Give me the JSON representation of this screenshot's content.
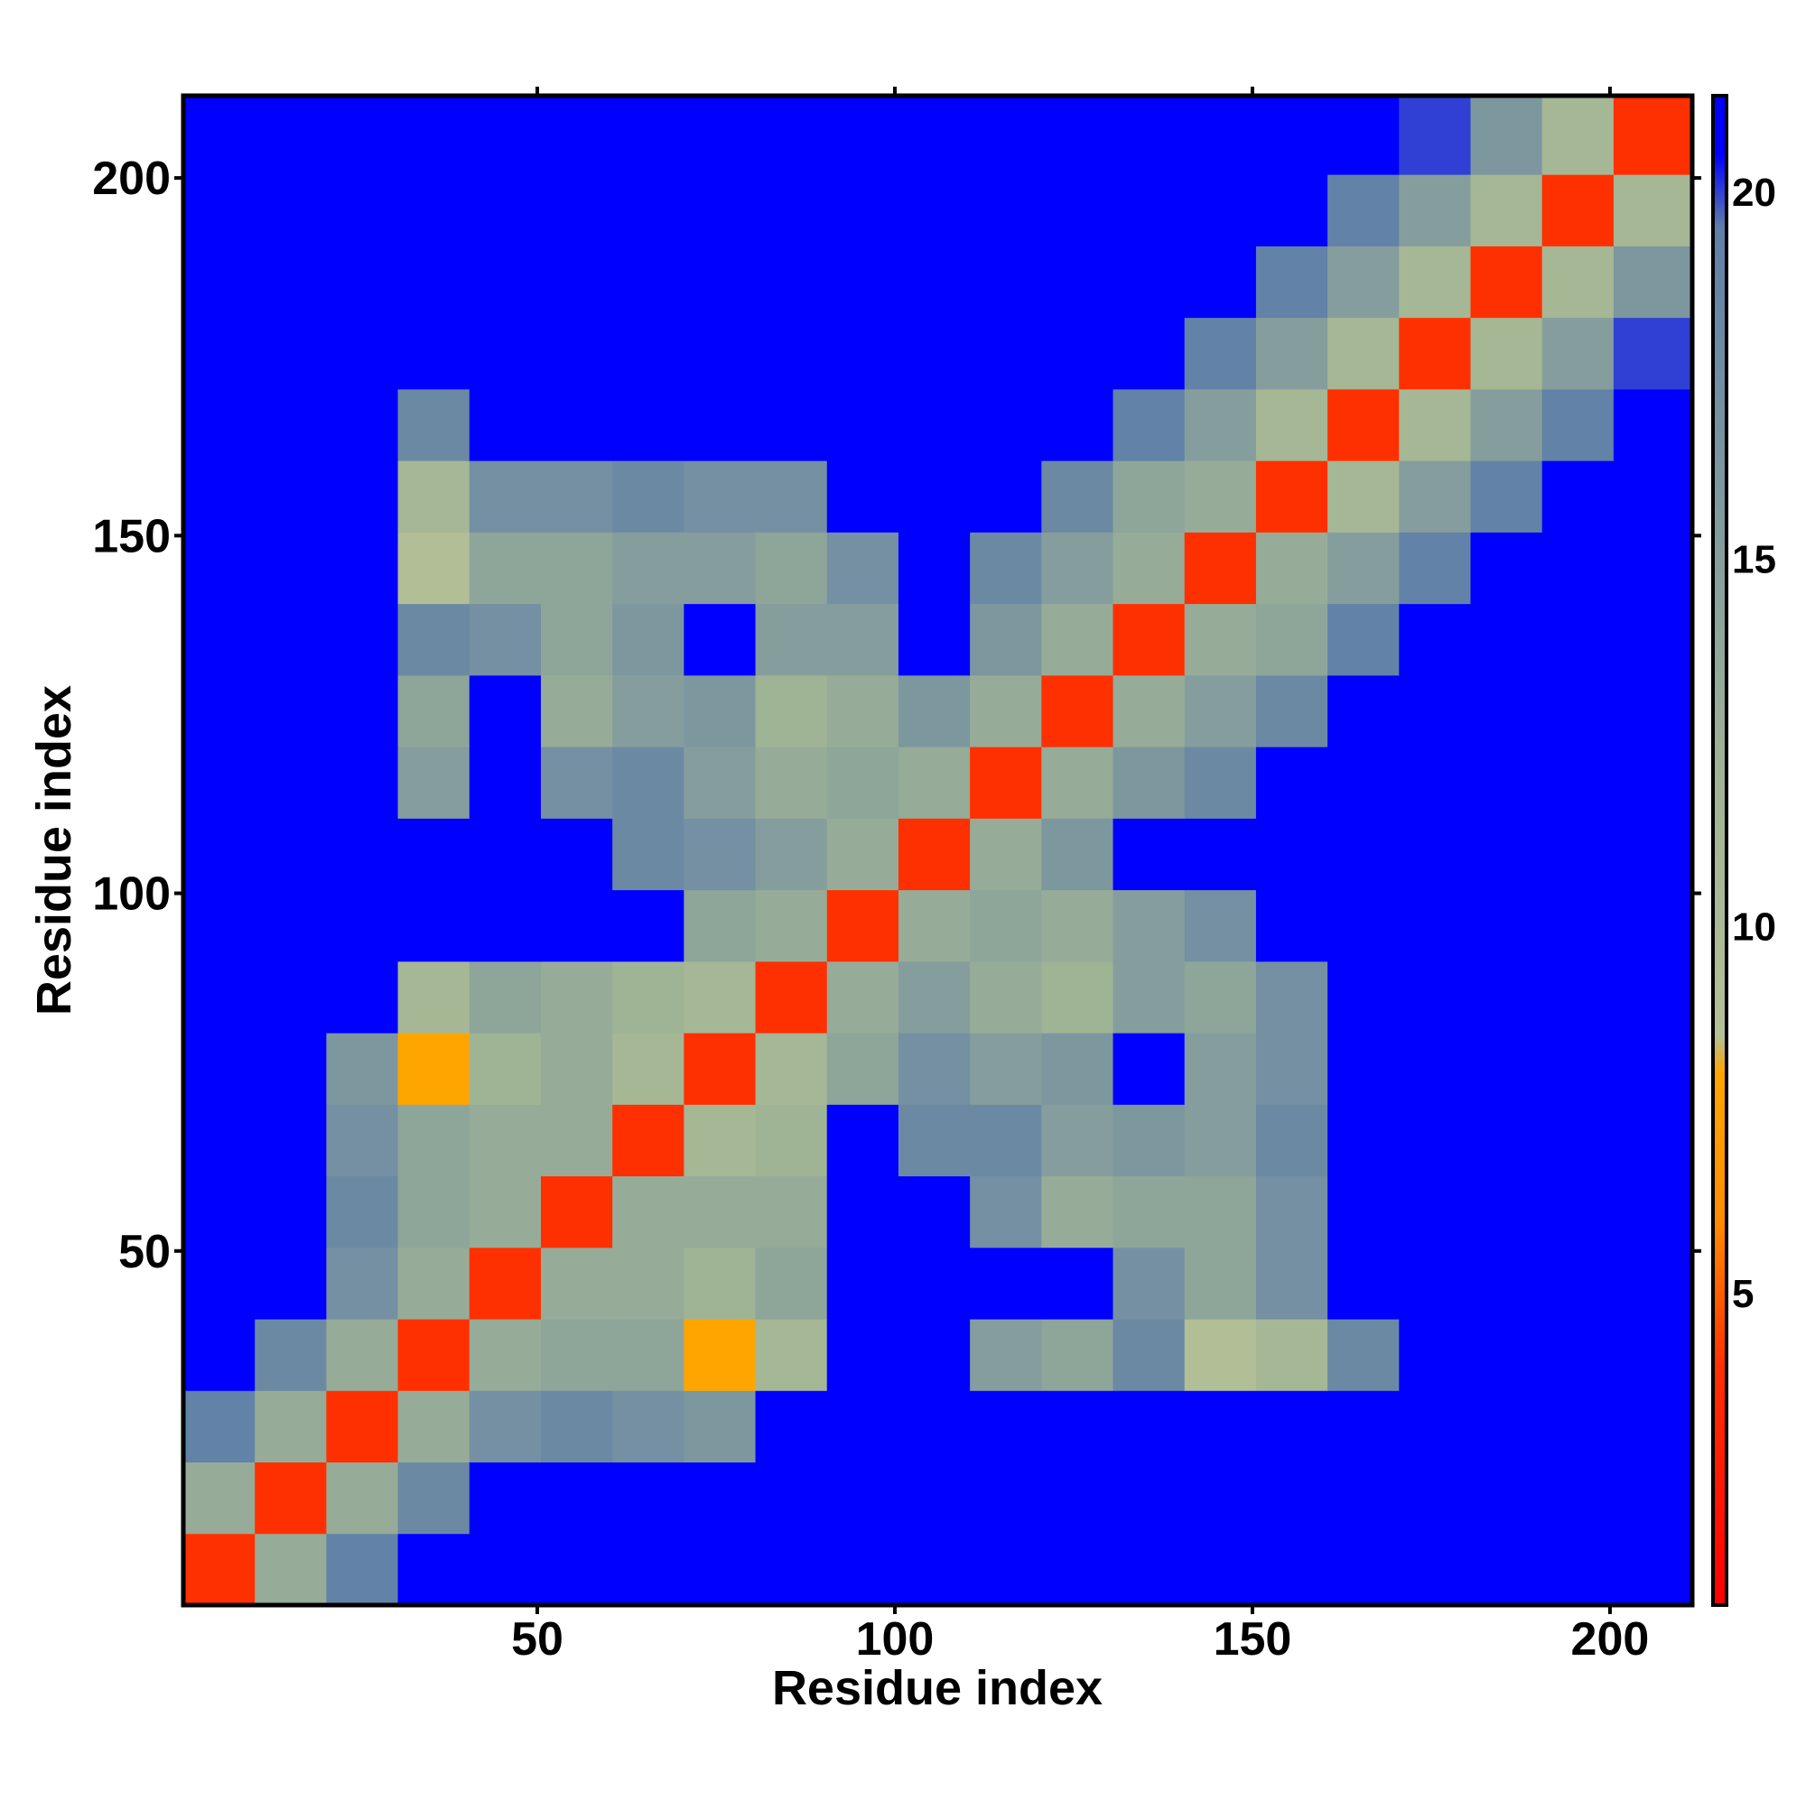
{
  "chart_data": {
    "type": "heatmap",
    "xlabel": "Residue index",
    "ylabel": "Residue index",
    "xlim": [
      0.5,
      211.5
    ],
    "ylim": [
      0.5,
      211.5
    ],
    "xticks": [
      50,
      100,
      150,
      200
    ],
    "yticks": [
      50,
      100,
      150,
      200
    ],
    "xbins": [
      0.5,
      10.5,
      20.5,
      30.5,
      40.5,
      50.5,
      60.5,
      70.5,
      80.5,
      90.5,
      100.5,
      110.5,
      120.5,
      130.5,
      140.5,
      150.5,
      160.5,
      170.5,
      180.5,
      190.5,
      200.5,
      211.5
    ],
    "ybins": [
      0.5,
      10.5,
      20.5,
      30.5,
      40.5,
      50.5,
      60.5,
      70.5,
      80.5,
      90.5,
      100.5,
      110.5,
      120.5,
      130.5,
      140.5,
      150.5,
      160.5,
      170.5,
      180.5,
      190.5,
      200.5,
      211.5
    ],
    "zlim": [
      0.75,
      21.3
    ],
    "zticks": [
      5,
      10,
      15,
      20
    ],
    "colorscale": [
      [
        0.75,
        "#ff0000"
      ],
      [
        4,
        "#ff3000"
      ],
      [
        6,
        "#ff8c00"
      ],
      [
        8,
        "#ffa500"
      ],
      [
        8.5,
        "#b4c096"
      ],
      [
        12,
        "#9fb395"
      ],
      [
        19.5,
        "#5f7fa8"
      ],
      [
        20.5,
        "#0000ff"
      ],
      [
        21.3,
        "#0000ff"
      ]
    ],
    "z": [
      [
        4,
        13,
        19,
        22,
        22,
        22,
        22,
        22,
        22,
        22,
        22,
        22,
        22,
        22,
        22,
        22,
        22,
        22,
        22,
        22,
        22
      ],
      [
        13,
        4,
        13,
        18,
        22,
        22,
        22,
        22,
        22,
        22,
        22,
        22,
        22,
        22,
        22,
        22,
        22,
        22,
        22,
        22,
        22
      ],
      [
        19,
        13,
        4,
        13,
        17,
        18,
        17,
        16,
        22,
        22,
        22,
        22,
        22,
        22,
        22,
        22,
        22,
        22,
        22,
        22,
        22
      ],
      [
        22,
        18,
        13,
        4,
        13,
        14,
        14,
        8,
        11,
        22,
        22,
        15,
        14,
        18,
        9,
        11,
        18,
        22,
        22,
        22,
        22
      ],
      [
        22,
        22,
        17,
        13,
        4,
        13,
        13,
        12,
        14,
        22,
        22,
        22,
        22,
        17,
        14,
        17,
        22,
        22,
        22,
        22,
        22
      ],
      [
        22,
        22,
        18,
        14,
        13,
        4,
        13,
        13,
        13,
        22,
        22,
        17,
        13,
        14,
        14,
        17,
        22,
        22,
        22,
        22,
        22
      ],
      [
        22,
        22,
        17,
        14,
        13,
        13,
        4,
        11,
        12,
        22,
        18,
        18,
        15,
        16,
        15,
        18,
        22,
        22,
        22,
        22,
        22
      ],
      [
        22,
        22,
        16,
        8,
        12,
        13,
        11,
        4,
        11,
        14,
        17,
        15,
        16,
        22,
        15,
        17,
        22,
        22,
        22,
        22,
        22
      ],
      [
        22,
        22,
        22,
        11,
        14,
        13,
        12,
        11,
        4,
        13,
        15,
        13,
        12,
        15,
        14,
        17,
        22,
        22,
        22,
        22,
        22
      ],
      [
        22,
        22,
        22,
        22,
        22,
        22,
        22,
        14,
        13,
        4,
        13,
        14,
        13,
        15,
        17,
        22,
        22,
        22,
        22,
        22,
        22
      ],
      [
        22,
        22,
        22,
        22,
        22,
        22,
        18,
        17,
        15,
        13,
        4,
        13,
        16,
        22,
        22,
        22,
        22,
        22,
        22,
        22,
        22
      ],
      [
        22,
        22,
        22,
        15,
        22,
        17,
        18,
        15,
        13,
        14,
        13,
        4,
        13,
        16,
        18,
        22,
        22,
        22,
        22,
        22,
        22
      ],
      [
        22,
        22,
        22,
        14,
        22,
        13,
        15,
        16,
        12,
        13,
        16,
        13,
        4,
        13,
        15,
        18,
        22,
        22,
        22,
        22,
        22
      ],
      [
        22,
        22,
        22,
        18,
        17,
        14,
        16,
        22,
        15,
        15,
        22,
        16,
        13,
        4,
        13,
        14,
        19,
        22,
        22,
        22,
        22
      ],
      [
        22,
        22,
        22,
        9,
        14,
        14,
        15,
        15,
        14,
        17,
        22,
        18,
        15,
        13,
        4,
        13,
        15,
        19,
        22,
        22,
        22
      ],
      [
        22,
        22,
        22,
        11,
        17,
        17,
        18,
        17,
        17,
        22,
        22,
        22,
        18,
        14,
        13,
        4,
        11,
        15,
        19,
        22,
        22
      ],
      [
        22,
        22,
        22,
        18,
        22,
        22,
        22,
        22,
        22,
        22,
        22,
        22,
        22,
        19,
        15,
        11,
        4,
        11,
        15,
        19,
        22
      ],
      [
        22,
        22,
        22,
        22,
        22,
        22,
        22,
        22,
        22,
        22,
        22,
        22,
        22,
        22,
        19,
        15,
        11,
        4,
        11,
        15,
        20
      ],
      [
        22,
        22,
        22,
        22,
        22,
        22,
        22,
        22,
        22,
        22,
        22,
        22,
        22,
        22,
        22,
        19,
        15,
        11,
        4,
        11,
        16
      ],
      [
        22,
        22,
        22,
        22,
        22,
        22,
        22,
        22,
        22,
        22,
        22,
        22,
        22,
        22,
        22,
        22,
        19,
        15,
        11,
        4,
        11
      ],
      [
        22,
        22,
        22,
        22,
        22,
        22,
        22,
        22,
        22,
        22,
        22,
        22,
        22,
        22,
        22,
        22,
        22,
        20,
        16,
        11,
        4
      ]
    ]
  }
}
